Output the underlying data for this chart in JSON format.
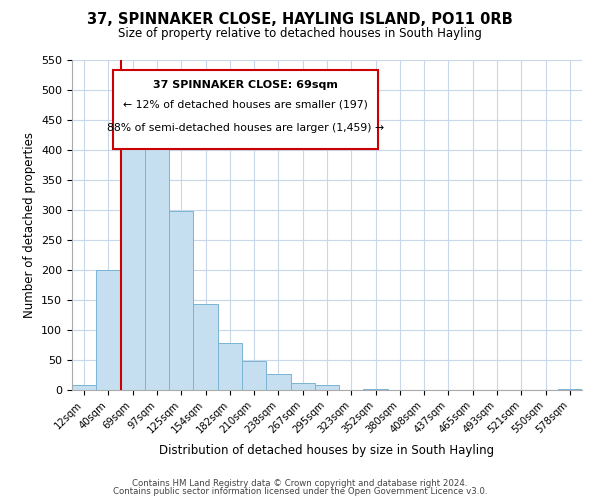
{
  "title": "37, SPINNAKER CLOSE, HAYLING ISLAND, PO11 0RB",
  "subtitle": "Size of property relative to detached houses in South Hayling",
  "xlabel": "Distribution of detached houses by size in South Hayling",
  "ylabel": "Number of detached properties",
  "bin_labels": [
    "12sqm",
    "40sqm",
    "69sqm",
    "97sqm",
    "125sqm",
    "154sqm",
    "182sqm",
    "210sqm",
    "238sqm",
    "267sqm",
    "295sqm",
    "323sqm",
    "352sqm",
    "380sqm",
    "408sqm",
    "437sqm",
    "465sqm",
    "493sqm",
    "521sqm",
    "550sqm",
    "578sqm"
  ],
  "bar_heights": [
    8,
    200,
    420,
    420,
    298,
    143,
    78,
    48,
    26,
    12,
    8,
    0,
    2,
    0,
    0,
    0,
    0,
    0,
    0,
    0,
    2
  ],
  "bar_color": "#c5dff0",
  "bar_edge_color": "#7ab4d4",
  "marker_idx": 2,
  "marker_color": "#cc0000",
  "ylim": [
    0,
    550
  ],
  "yticks": [
    0,
    50,
    100,
    150,
    200,
    250,
    300,
    350,
    400,
    450,
    500,
    550
  ],
  "annotation_title": "37 SPINNAKER CLOSE: 69sqm",
  "annotation_line1": "← 12% of detached houses are smaller (197)",
  "annotation_line2": "88% of semi-detached houses are larger (1,459) →",
  "footer_line1": "Contains HM Land Registry data © Crown copyright and database right 2024.",
  "footer_line2": "Contains public sector information licensed under the Open Government Licence v3.0.",
  "background_color": "#ffffff",
  "grid_color": "#c8d8ea"
}
